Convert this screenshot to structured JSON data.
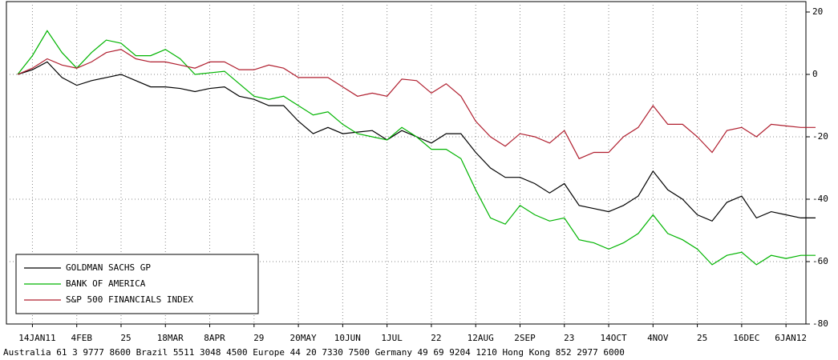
{
  "chart_data": {
    "type": "line",
    "categories": [
      null,
      "14JAN11",
      null,
      null,
      "4FEB",
      null,
      null,
      "25",
      null,
      null,
      "18MAR",
      null,
      null,
      "8APR",
      null,
      null,
      "29",
      null,
      null,
      "20MAY",
      null,
      null,
      "10JUN",
      null,
      null,
      "1JUL",
      null,
      null,
      "22",
      null,
      null,
      "12AUG",
      null,
      null,
      "2SEP",
      null,
      null,
      "23",
      null,
      null,
      "14OCT",
      null,
      null,
      "4NOV",
      null,
      null,
      "25",
      null,
      null,
      "16DEC",
      null,
      null,
      "6JAN12",
      null,
      null
    ],
    "series": [
      {
        "name": "GOLDMAN SACHS GP",
        "color": "#000000",
        "values": [
          0,
          1.5,
          4,
          -1,
          -3.5,
          -2,
          -1,
          0,
          -2,
          -4,
          -4,
          -4.5,
          -5.5,
          -4.5,
          -4,
          -7,
          -8,
          -10,
          -10,
          -15,
          -19,
          -17,
          -19,
          -18.5,
          -18,
          -21,
          -18,
          -20,
          -22,
          -19,
          -19,
          -25,
          -30,
          -33,
          -33,
          -35,
          -38,
          -35,
          -42,
          -43,
          -44,
          -42,
          -39,
          -31,
          -37,
          -40,
          -45,
          -47,
          -41,
          -39,
          -46,
          -44,
          -45,
          -46,
          -46
        ]
      },
      {
        "name": "BANK OF AMERICA",
        "color": "#00b400",
        "values": [
          0,
          6,
          14,
          7,
          2,
          7,
          11,
          10,
          6,
          6,
          8,
          5,
          0,
          0.5,
          1,
          -3,
          -7,
          -8,
          -7,
          -10,
          -13,
          -12,
          -16,
          -19,
          -20,
          -21,
          -17,
          -20,
          -24,
          -24,
          -27,
          -37,
          -46,
          -48,
          -42,
          -45,
          -47,
          -46,
          -53,
          -54,
          -56,
          -54,
          -51,
          -45,
          -51,
          -53,
          -56,
          -61,
          -58,
          -57,
          -61,
          -58,
          -59,
          -58,
          -58
        ]
      },
      {
        "name": "S&P 500 FINANCIALS INDEX",
        "color": "#b01e2e",
        "values": [
          0,
          2,
          5,
          3,
          2,
          4,
          7,
          8,
          5,
          4,
          4,
          3,
          2,
          4,
          4,
          1.5,
          1.5,
          3,
          2,
          -1,
          -1,
          -1,
          -4,
          -7,
          -6,
          -7,
          -1.5,
          -2,
          -6,
          -3,
          -7,
          -15,
          -20,
          -23,
          -19,
          -20,
          -22,
          -18,
          -27,
          -25,
          -25,
          -20,
          -17,
          -10,
          -16,
          -16,
          -20,
          -25,
          -18,
          -17,
          -20,
          -16,
          -16.5,
          -17,
          -17
        ]
      }
    ],
    "ylim": [
      -80,
      20
    ],
    "yticks": [
      20,
      0,
      -20,
      -40,
      -60,
      -80
    ],
    "grid": true,
    "legend": "lower left",
    "footer": "Australia 61 3 9777 8600 Brazil 5511 3048 4500 Europe 44 20 7330 7500 Germany 49 69 9204 1210 Hong Kong 852 2977 6000"
  }
}
